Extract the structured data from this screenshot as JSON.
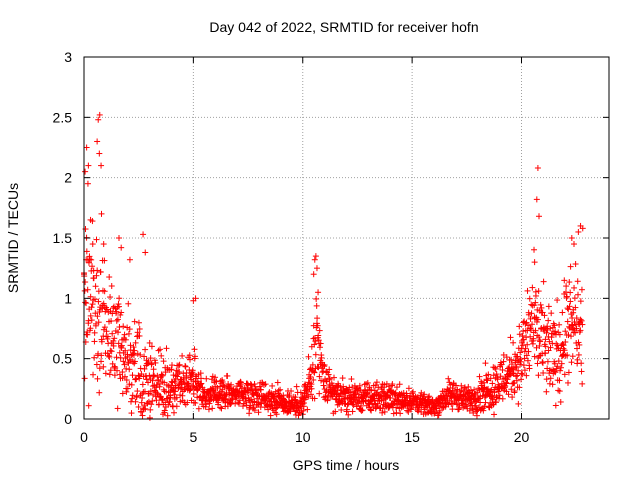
{
  "chart_data": {
    "type": "scatter",
    "title": "Day 042 of 2022, SRMTID for receiver hofn",
    "xlabel": "GPS time / hours",
    "ylabel": "SRMTID / TECUs",
    "xlim": [
      0,
      24
    ],
    "ylim": [
      0,
      3
    ],
    "xticks": [
      0,
      5,
      10,
      15,
      20
    ],
    "yticks": [
      0,
      0.5,
      1,
      1.5,
      2,
      2.5,
      3
    ],
    "xtick_labels": [
      "0",
      "5",
      "10",
      "15",
      "20"
    ],
    "ytick_labels": [
      "0",
      "0.5",
      "1",
      "1.5",
      "2",
      "2.5",
      "3"
    ],
    "grid": true,
    "marker": "+",
    "series": [
      {
        "name": "SRMTID",
        "color": "#ff0000",
        "envelope": {
          "x": [
            0.0,
            0.3,
            0.6,
            1.0,
            1.5,
            2.0,
            2.5,
            3.0,
            3.5,
            4.0,
            4.5,
            5.0,
            5.5,
            6.0,
            7.0,
            8.0,
            9.0,
            10.0,
            10.5,
            10.6,
            11.0,
            11.5,
            12.0,
            13.0,
            14.0,
            15.0,
            15.5,
            16.0,
            16.5,
            17.0,
            17.5,
            18.0,
            18.5,
            19.0,
            19.5,
            20.0,
            20.5,
            21.0,
            21.5,
            22.0,
            22.5,
            22.8
          ],
          "median": [
            0.9,
            1.0,
            0.85,
            0.75,
            0.6,
            0.5,
            0.4,
            0.35,
            0.3,
            0.25,
            0.3,
            0.35,
            0.2,
            0.2,
            0.22,
            0.2,
            0.15,
            0.12,
            0.4,
            0.6,
            0.3,
            0.2,
            0.18,
            0.17,
            0.18,
            0.15,
            0.12,
            0.1,
            0.18,
            0.2,
            0.15,
            0.2,
            0.25,
            0.3,
            0.4,
            0.5,
            0.8,
            0.6,
            0.5,
            0.7,
            0.8,
            0.6
          ],
          "spread": [
            0.5,
            0.6,
            0.5,
            0.4,
            0.35,
            0.3,
            0.3,
            0.25,
            0.2,
            0.2,
            0.2,
            0.2,
            0.1,
            0.1,
            0.1,
            0.1,
            0.1,
            0.08,
            0.3,
            0.4,
            0.15,
            0.1,
            0.1,
            0.1,
            0.1,
            0.08,
            0.06,
            0.06,
            0.1,
            0.1,
            0.08,
            0.12,
            0.15,
            0.18,
            0.2,
            0.25,
            0.4,
            0.35,
            0.3,
            0.4,
            0.35,
            0.3
          ]
        },
        "peaks": [
          [
            0.05,
            2.05
          ],
          [
            0.12,
            2.25
          ],
          [
            0.2,
            2.1
          ],
          [
            0.18,
            1.95
          ],
          [
            0.3,
            1.65
          ],
          [
            0.4,
            1.45
          ],
          [
            0.6,
            2.3
          ],
          [
            0.65,
            2.48
          ],
          [
            0.72,
            2.52
          ],
          [
            0.7,
            2.2
          ],
          [
            0.78,
            2.1
          ],
          [
            0.8,
            1.7
          ],
          [
            0.9,
            1.45
          ],
          [
            1.6,
            1.5
          ],
          [
            1.7,
            1.42
          ],
          [
            2.1,
            1.32
          ],
          [
            2.7,
            1.53
          ],
          [
            2.8,
            1.38
          ],
          [
            5.0,
            0.98
          ],
          [
            5.1,
            1.0
          ],
          [
            10.5,
            1.2
          ],
          [
            10.55,
            1.32
          ],
          [
            10.6,
            1.35
          ],
          [
            10.65,
            1.25
          ],
          [
            10.7,
            1.05
          ],
          [
            20.7,
            1.82
          ],
          [
            20.75,
            2.08
          ],
          [
            20.8,
            1.68
          ],
          [
            20.6,
            1.3
          ],
          [
            22.3,
            1.5
          ],
          [
            22.4,
            1.45
          ],
          [
            22.6,
            1.55
          ],
          [
            22.7,
            1.6
          ],
          [
            22.8,
            1.58
          ],
          [
            0.0,
            1.2
          ],
          [
            0.1,
            1.32
          ]
        ]
      }
    ]
  }
}
